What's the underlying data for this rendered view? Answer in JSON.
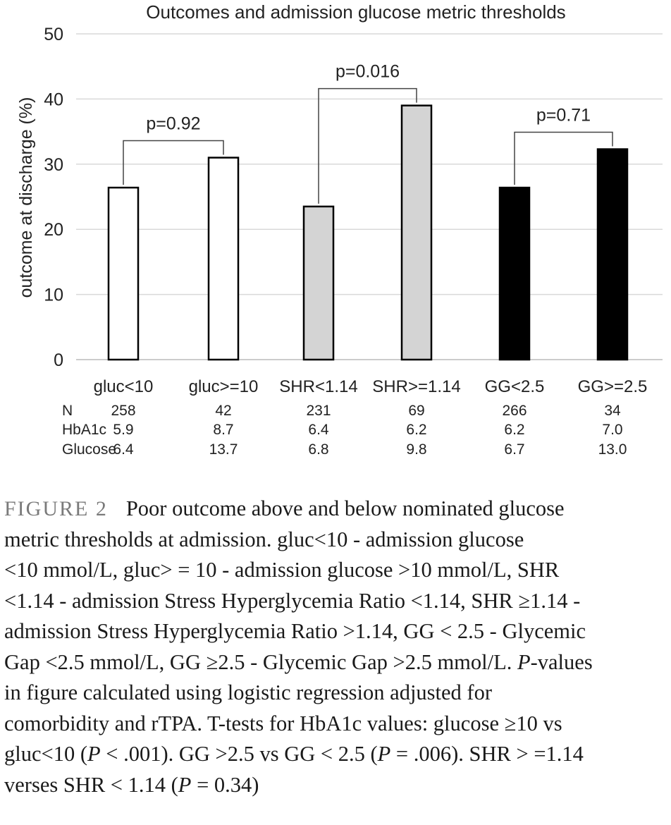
{
  "chart_data": {
    "type": "bar",
    "title": "Outcomes and admission glucose metric thresholds",
    "ylabel": "outcome at discharge (%)",
    "xlabel": "",
    "ylim": [
      0,
      50
    ],
    "yticks": [
      0,
      10,
      20,
      30,
      40,
      50
    ],
    "grid": true,
    "categories": [
      "gluc<10",
      "gluc>=10",
      "SHR<1.14",
      "SHR>=1.14",
      "GG<2.5",
      "GG>=2.5"
    ],
    "values": [
      26.4,
      31.0,
      23.5,
      39.0,
      26.4,
      32.3
    ],
    "bar_colors": [
      "#ffffff",
      "#ffffff",
      "#d4d4d4",
      "#d4d4d4",
      "#000000",
      "#000000"
    ],
    "comparisons": [
      {
        "pair": [
          0,
          1
        ],
        "label": "p=0.92"
      },
      {
        "pair": [
          2,
          3
        ],
        "label": "p=0.016"
      },
      {
        "pair": [
          4,
          5
        ],
        "label": "p=0.71"
      }
    ],
    "table": {
      "rows": [
        {
          "label": "N",
          "values": [
            "258",
            "42",
            "231",
            "69",
            "266",
            "34"
          ]
        },
        {
          "label": "HbA1c",
          "values": [
            "5.9",
            "8.7",
            "6.4",
            "6.2",
            "6.2",
            "7.0"
          ]
        },
        {
          "label": "Glucose",
          "values": [
            "6.4",
            "13.7",
            "6.8",
            "9.8",
            "6.7",
            "13.0"
          ]
        }
      ]
    }
  },
  "caption": {
    "figure_label": "FIGURE 2",
    "lines": [
      "Poor outcome above and below nominated glucose",
      "metric thresholds at admission. gluc<10 - admission glucose",
      "<10 mmol/L, gluc> = 10 - admission glucose >10 mmol/L, SHR",
      "<1.14 - admission Stress Hyperglycemia Ratio <1.14, SHR ≥1.14 -",
      "admission Stress Hyperglycemia Ratio >1.14, GG < 2.5 - Glycemic",
      "Gap <2.5 mmol/L, GG ≥2.5 - Glycemic Gap >2.5 mmol/L.",
      "P",
      "-values",
      "in figure calculated using logistic regression adjusted for",
      "comorbidity and rTPA. T-tests for HbA1c values: glucose ≥10 vs",
      "gluc<10 (",
      "P",
      " < .001). GG >2.5 vs GG < 2.5 (",
      "P",
      " = .006). SHR > =1.14",
      "verses SHR < 1.14 (",
      "P",
      " = 0.34)"
    ]
  }
}
